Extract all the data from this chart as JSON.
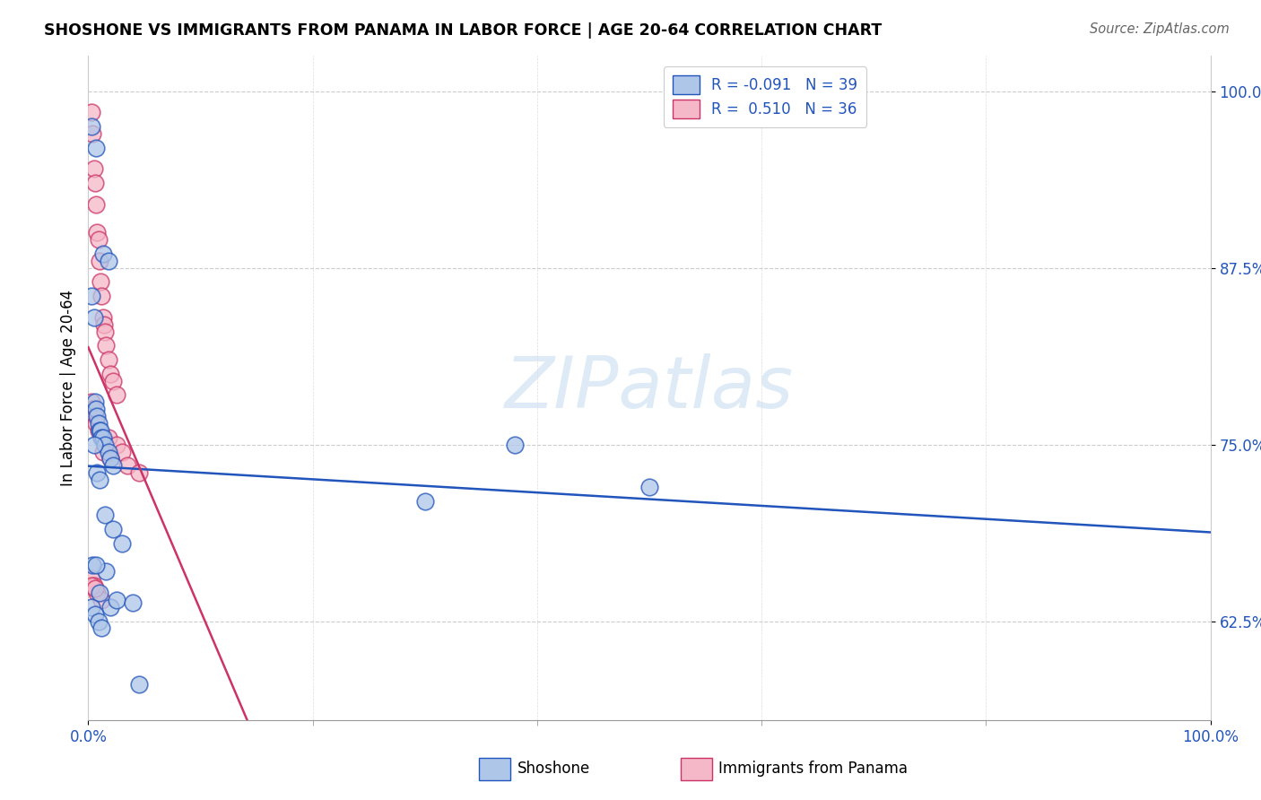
{
  "title": "SHOSHONE VS IMMIGRANTS FROM PANAMA IN LABOR FORCE | AGE 20-64 CORRELATION CHART",
  "source": "Source: ZipAtlas.com",
  "ylabel": "In Labor Force | Age 20-64",
  "yticks": [
    0.625,
    0.75,
    0.875,
    1.0
  ],
  "ytick_labels": [
    "62.5%",
    "75.0%",
    "87.5%",
    "100.0%"
  ],
  "xlim": [
    0.0,
    1.0
  ],
  "ylim": [
    0.555,
    1.025
  ],
  "watermark_zip": "ZIP",
  "watermark_atlas": "atlas",
  "shoshone_color": "#aec6e8",
  "panama_color": "#f5b8c8",
  "shoshone_line_color": "#2255bb",
  "panama_line_color": "#cc3366",
  "legend_R1": "-0.091",
  "legend_N1": "39",
  "legend_R2": "0.510",
  "legend_N2": "36",
  "shoshone_x": [
    0.003,
    0.007,
    0.003,
    0.005,
    0.006,
    0.007,
    0.008,
    0.009,
    0.01,
    0.011,
    0.012,
    0.013,
    0.015,
    0.018,
    0.02,
    0.022,
    0.005,
    0.008,
    0.01,
    0.015,
    0.022,
    0.03,
    0.003,
    0.006,
    0.009,
    0.012,
    0.016,
    0.02,
    0.025,
    0.045,
    0.013,
    0.018,
    0.38,
    0.5,
    0.3,
    0.004,
    0.007,
    0.01,
    0.04
  ],
  "shoshone_y": [
    0.975,
    0.96,
    0.855,
    0.84,
    0.78,
    0.775,
    0.77,
    0.765,
    0.76,
    0.76,
    0.755,
    0.755,
    0.75,
    0.745,
    0.74,
    0.735,
    0.75,
    0.73,
    0.725,
    0.7,
    0.69,
    0.68,
    0.635,
    0.63,
    0.625,
    0.62,
    0.66,
    0.635,
    0.64,
    0.58,
    0.885,
    0.88,
    0.75,
    0.72,
    0.71,
    0.665,
    0.665,
    0.645,
    0.638
  ],
  "panama_x": [
    0.003,
    0.004,
    0.005,
    0.006,
    0.007,
    0.008,
    0.009,
    0.01,
    0.011,
    0.012,
    0.013,
    0.014,
    0.015,
    0.016,
    0.018,
    0.02,
    0.022,
    0.025,
    0.003,
    0.004,
    0.006,
    0.007,
    0.009,
    0.003,
    0.005,
    0.008,
    0.012,
    0.018,
    0.025,
    0.03,
    0.013,
    0.02,
    0.035,
    0.045,
    0.003,
    0.006
  ],
  "panama_y": [
    0.985,
    0.97,
    0.945,
    0.935,
    0.92,
    0.9,
    0.895,
    0.88,
    0.865,
    0.855,
    0.84,
    0.835,
    0.83,
    0.82,
    0.81,
    0.8,
    0.795,
    0.785,
    0.78,
    0.775,
    0.77,
    0.765,
    0.76,
    0.655,
    0.65,
    0.645,
    0.64,
    0.755,
    0.75,
    0.745,
    0.745,
    0.74,
    0.735,
    0.73,
    0.65,
    0.648
  ]
}
